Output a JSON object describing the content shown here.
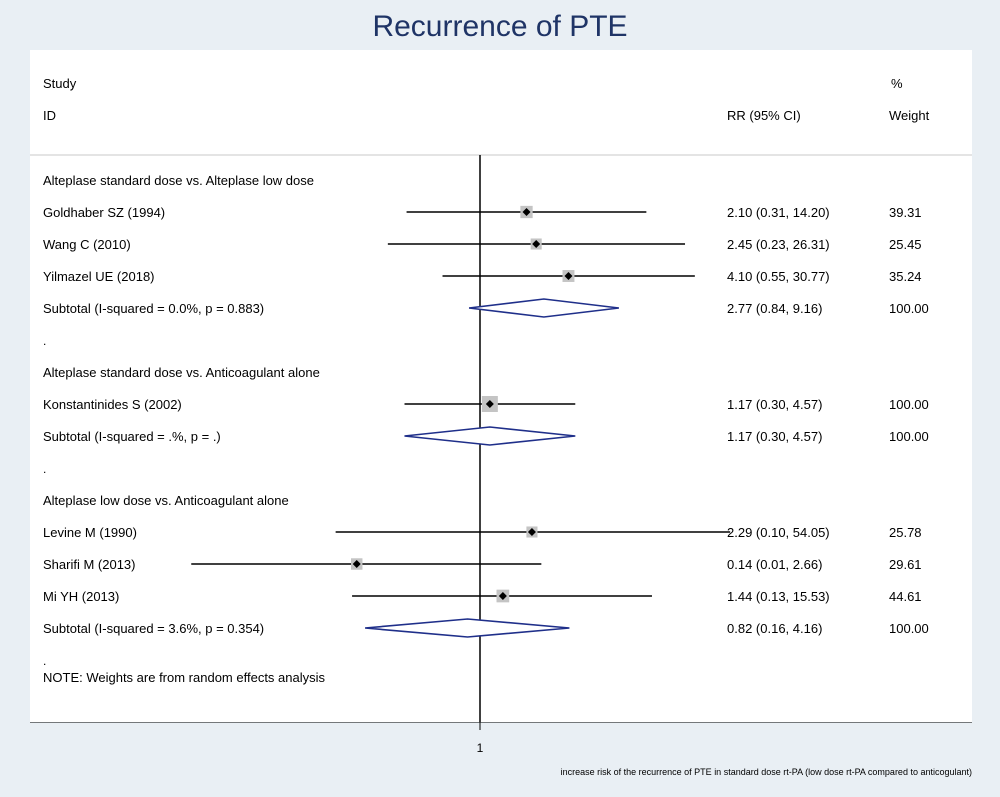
{
  "title": "Recurrence of PTE",
  "headers": {
    "study_line1": "Study",
    "study_line2": "ID",
    "rr": "RR (95% CI)",
    "weight_line1": "%",
    "weight_line2": "Weight"
  },
  "rows": [
    {
      "kind": "group",
      "label": "Alteplase standard dose vs. Alteplase low dose"
    },
    {
      "kind": "study",
      "label": "Goldhaber SZ (1994)",
      "rr": 2.1,
      "lo": 0.31,
      "hi": 14.2,
      "ci_text": "2.10 (0.31, 14.20)",
      "weight": "39.31",
      "w": 39.31
    },
    {
      "kind": "study",
      "label": "Wang C (2010)",
      "rr": 2.45,
      "lo": 0.23,
      "hi": 26.31,
      "ci_text": "2.45 (0.23, 26.31)",
      "weight": "25.45",
      "w": 25.45
    },
    {
      "kind": "study",
      "label": "Yilmazel UE (2018)",
      "rr": 4.1,
      "lo": 0.55,
      "hi": 30.77,
      "ci_text": "4.10 (0.55, 30.77)",
      "weight": "35.24",
      "w": 35.24
    },
    {
      "kind": "subtotal",
      "label": "Subtotal  (I-squared = 0.0%, p = 0.883)",
      "rr": 2.77,
      "lo": 0.84,
      "hi": 9.16,
      "ci_text": "2.77 (0.84, 9.16)",
      "weight": "100.00"
    },
    {
      "kind": "dot",
      "label": "."
    },
    {
      "kind": "group",
      "label": "Alteplase standard dose vs. Anticoagulant alone"
    },
    {
      "kind": "study",
      "label": "Konstantinides S (2002)",
      "rr": 1.17,
      "lo": 0.3,
      "hi": 4.57,
      "ci_text": "1.17 (0.30, 4.57)",
      "weight": "100.00",
      "w": 100.0
    },
    {
      "kind": "subtotal",
      "label": "Subtotal  (I-squared = .%, p = .)",
      "rr": 1.17,
      "lo": 0.3,
      "hi": 4.57,
      "ci_text": "1.17 (0.30, 4.57)",
      "weight": "100.00"
    },
    {
      "kind": "dot",
      "label": "."
    },
    {
      "kind": "group",
      "label": "Alteplase low dose vs. Anticoagulant alone"
    },
    {
      "kind": "study",
      "label": "Levine M (1990)",
      "rr": 2.29,
      "lo": 0.1,
      "hi": 54.05,
      "ci_text": "2.29 (0.10, 54.05)",
      "weight": "25.78",
      "w": 25.78
    },
    {
      "kind": "study",
      "label": "Sharifi M (2013)",
      "rr": 0.14,
      "lo": 0.01,
      "hi": 2.66,
      "ci_text": "0.14 (0.01, 2.66)",
      "weight": "29.61",
      "w": 29.61
    },
    {
      "kind": "study",
      "label": "Mi YH (2013)",
      "rr": 1.44,
      "lo": 0.13,
      "hi": 15.53,
      "ci_text": "1.44 (0.13, 15.53)",
      "weight": "44.61",
      "w": 44.61
    },
    {
      "kind": "subtotal",
      "label": "Subtotal  (I-squared = 3.6%, p = 0.354)",
      "rr": 0.82,
      "lo": 0.16,
      "hi": 4.16,
      "ci_text": "0.82 (0.16, 4.16)",
      "weight": "100.00"
    },
    {
      "kind": "dot",
      "label": "."
    }
  ],
  "note": "NOTE: Weights are from random effects analysis",
  "x_tick": "1",
  "x_label": "increase risk of the recurrence of PTE in standard dose rt-PA (low dose rt-PA compared to anticogulant)",
  "colors": {
    "diamond": "#1f2f8a",
    "box": "#c4c4c4",
    "line": "#000000",
    "title": "#1f3466"
  },
  "chart_data": {
    "type": "forest",
    "scale": "log",
    "reference_value": 1,
    "x_ticks": [
      "1"
    ],
    "xlabel": "increase risk of the recurrence of PTE in standard dose rt-PA (low dose rt-PA compared to anticogulant)",
    "groups": [
      {
        "name": "Alteplase standard dose vs. Alteplase low dose",
        "studies": [
          {
            "name": "Goldhaber SZ (1994)",
            "rr": 2.1,
            "lo": 0.31,
            "hi": 14.2,
            "weight": 39.31
          },
          {
            "name": "Wang C (2010)",
            "rr": 2.45,
            "lo": 0.23,
            "hi": 26.31,
            "weight": 25.45
          },
          {
            "name": "Yilmazel UE (2018)",
            "rr": 4.1,
            "lo": 0.55,
            "hi": 30.77,
            "weight": 35.24
          }
        ],
        "subtotal": {
          "i_squared": "0.0%",
          "p": "0.883",
          "rr": 2.77,
          "lo": 0.84,
          "hi": 9.16,
          "weight": 100.0
        }
      },
      {
        "name": "Alteplase standard dose vs. Anticoagulant alone",
        "studies": [
          {
            "name": "Konstantinides S (2002)",
            "rr": 1.17,
            "lo": 0.3,
            "hi": 4.57,
            "weight": 100.0
          }
        ],
        "subtotal": {
          "i_squared": ".%",
          "p": ".",
          "rr": 1.17,
          "lo": 0.3,
          "hi": 4.57,
          "weight": 100.0
        }
      },
      {
        "name": "Alteplase low dose vs. Anticoagulant alone",
        "studies": [
          {
            "name": "Levine M (1990)",
            "rr": 2.29,
            "lo": 0.1,
            "hi": 54.05,
            "weight": 25.78
          },
          {
            "name": "Sharifi M (2013)",
            "rr": 0.14,
            "lo": 0.01,
            "hi": 2.66,
            "weight": 29.61
          },
          {
            "name": "Mi YH (2013)",
            "rr": 1.44,
            "lo": 0.13,
            "hi": 15.53,
            "weight": 44.61
          }
        ],
        "subtotal": {
          "i_squared": "3.6%",
          "p": "0.354",
          "rr": 0.82,
          "lo": 0.16,
          "hi": 4.16,
          "weight": 100.0
        }
      }
    ]
  }
}
